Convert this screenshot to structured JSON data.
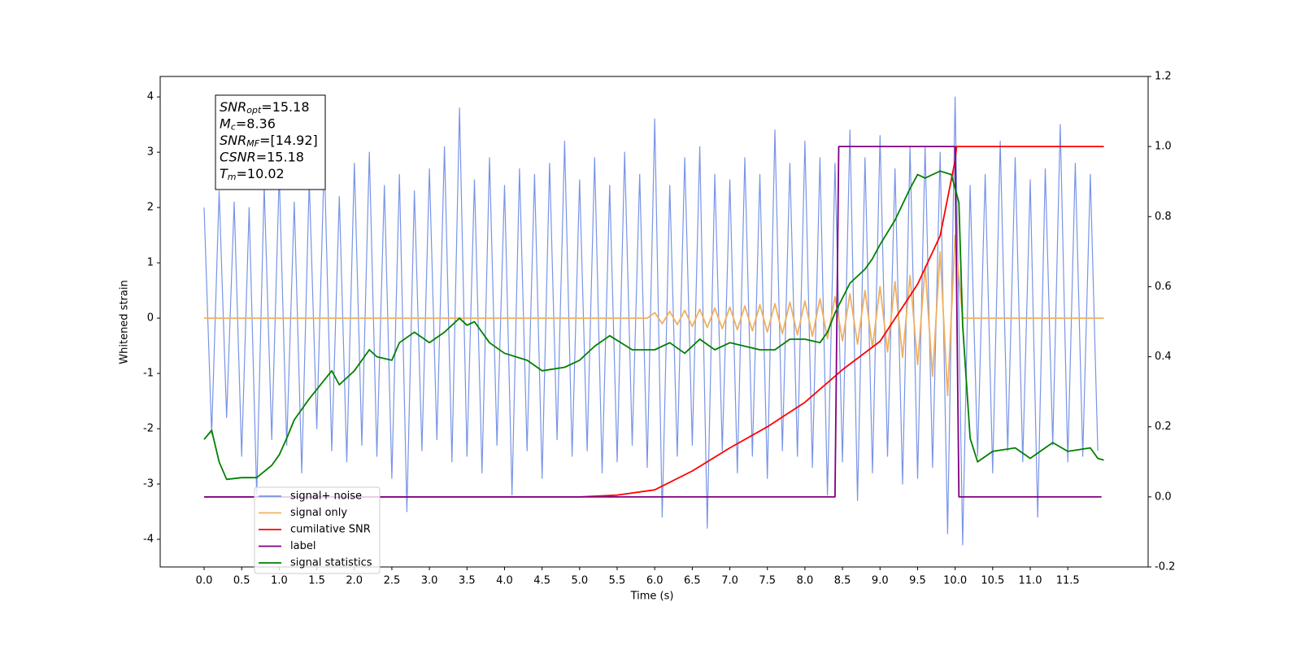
{
  "chart_data": {
    "type": "line",
    "x_label": "Time (s)",
    "y_label": "Whitened strain",
    "xlim": [
      -0.585,
      12.57
    ],
    "ylim": [
      -4.5,
      4.37
    ],
    "y2lim": [
      -0.2,
      1.2
    ],
    "xticks": [
      {
        "value": 0,
        "label": "0.0"
      },
      0.5,
      {
        "value": 1,
        "label": "1.0"
      },
      1.5,
      {
        "value": 2,
        "label": "2.0"
      },
      2.5,
      {
        "value": 3,
        "label": "3.0"
      },
      3.5,
      {
        "value": 4,
        "label": "4.0"
      },
      4.5,
      {
        "value": 5,
        "label": "5.0"
      },
      5.5,
      {
        "value": 6,
        "label": "6.0"
      },
      6.5,
      {
        "value": 7,
        "label": "7.0"
      },
      7.5,
      {
        "value": 8,
        "label": "8.0"
      },
      8.5,
      {
        "value": 9,
        "label": "9.0"
      },
      9.5,
      {
        "value": 10,
        "label": "10.0"
      },
      10.5,
      {
        "value": 11,
        "label": "11.0"
      },
      11.5
    ],
    "yticks": [
      -4,
      -3,
      -2,
      -1,
      0,
      1,
      2,
      3,
      4
    ],
    "y2ticks": [
      -0.2,
      {
        "value": 0,
        "label": "0.0"
      },
      0.2,
      0.4,
      0.6,
      0.8,
      {
        "value": 1,
        "label": "1.0"
      },
      1.2
    ],
    "annotations": [
      {
        "name": "SNR",
        "sub": "opt",
        "text": "=15.18"
      },
      {
        "name": "M",
        "sub": "c",
        "text": "=8.36"
      },
      {
        "name": "SNR",
        "sub": "MF",
        "text": "=[14.92]"
      },
      {
        "name": "CSNR",
        "sub": "",
        "text": "=15.18"
      },
      {
        "name": "T",
        "sub": "m",
        "text": "=10.02"
      }
    ],
    "series": [
      {
        "name": "signal+ noise",
        "color": "#7894e6",
        "x": [
          0.0,
          0.1,
          0.2,
          0.3,
          0.4,
          0.5,
          0.6,
          0.7,
          0.8,
          0.9,
          1.0,
          1.1,
          1.2,
          1.3,
          1.4,
          1.5,
          1.6,
          1.7,
          1.8,
          1.9,
          2.0,
          2.1,
          2.2,
          2.3,
          2.4,
          2.5,
          2.6,
          2.7,
          2.8,
          2.9,
          3.0,
          3.1,
          3.2,
          3.3,
          3.4,
          3.5,
          3.6,
          3.7,
          3.8,
          3.9,
          4.0,
          4.1,
          4.2,
          4.3,
          4.4,
          4.5,
          4.6,
          4.7,
          4.8,
          4.9,
          5.0,
          5.1,
          5.2,
          5.3,
          5.4,
          5.5,
          5.6,
          5.7,
          5.8,
          5.9,
          6.0,
          6.1,
          6.2,
          6.3,
          6.4,
          6.5,
          6.6,
          6.7,
          6.8,
          6.9,
          7.0,
          7.1,
          7.2,
          7.3,
          7.4,
          7.5,
          7.6,
          7.7,
          7.8,
          7.9,
          8.0,
          8.1,
          8.2,
          8.3,
          8.4,
          8.5,
          8.6,
          8.7,
          8.8,
          8.9,
          9.0,
          9.1,
          9.2,
          9.3,
          9.4,
          9.5,
          9.6,
          9.7,
          9.8,
          9.9,
          10.0,
          10.1,
          10.2,
          10.3,
          10.4,
          10.5,
          10.6,
          10.7,
          10.8,
          10.9,
          11.0,
          11.1,
          11.2,
          11.3,
          11.4,
          11.5,
          11.6,
          11.7,
          11.8,
          11.9
        ],
        "values": [
          2.0,
          -2.1,
          2.3,
          -1.8,
          2.1,
          -2.5,
          2.0,
          -3.2,
          2.4,
          -2.2,
          2.6,
          -2.3,
          2.1,
          -2.8,
          2.5,
          -2.0,
          2.9,
          -2.4,
          2.2,
          -2.6,
          2.8,
          -2.3,
          3.0,
          -2.5,
          2.4,
          -2.9,
          2.6,
          -3.5,
          2.3,
          -2.4,
          2.7,
          -2.2,
          3.1,
          -2.6,
          3.8,
          -2.5,
          2.5,
          -2.8,
          2.9,
          -2.3,
          2.4,
          -3.2,
          2.7,
          -2.4,
          2.6,
          -2.9,
          2.8,
          -2.2,
          3.2,
          -2.5,
          2.5,
          -2.4,
          2.9,
          -2.8,
          2.4,
          -2.6,
          3.0,
          -2.3,
          2.6,
          -2.7,
          3.6,
          -3.6,
          2.4,
          -2.5,
          2.9,
          -2.3,
          3.1,
          -3.8,
          2.6,
          -2.4,
          2.5,
          -2.8,
          2.9,
          -2.5,
          2.6,
          -2.9,
          3.4,
          -2.4,
          2.8,
          -2.5,
          3.2,
          -2.7,
          2.9,
          -3.2,
          2.8,
          -2.6,
          3.4,
          -3.3,
          2.9,
          -2.8,
          3.3,
          -2.5,
          2.7,
          -3.0,
          3.1,
          -2.9,
          3.1,
          -2.7,
          3.0,
          -3.9,
          4.0,
          -4.1,
          2.4,
          -2.5,
          2.6,
          -2.8,
          3.2,
          -2.4,
          2.9,
          -2.6,
          2.5,
          -3.6,
          2.7,
          -2.3,
          3.5,
          -2.6,
          2.8,
          -2.5,
          2.6,
          -2.4
        ]
      },
      {
        "name": "signal only",
        "color": "#f0b060",
        "x": [
          0.0,
          5.9,
          6.0,
          6.1,
          6.2,
          6.3,
          6.4,
          6.5,
          6.6,
          6.7,
          6.8,
          6.9,
          7.0,
          7.1,
          7.2,
          7.3,
          7.4,
          7.5,
          7.6,
          7.7,
          7.8,
          7.9,
          8.0,
          8.1,
          8.2,
          8.3,
          8.4,
          8.5,
          8.6,
          8.7,
          8.8,
          8.9,
          9.0,
          9.1,
          9.2,
          9.3,
          9.4,
          9.5,
          9.6,
          9.7,
          9.8,
          9.9,
          10.0,
          10.1,
          11.98
        ],
        "values": [
          0,
          0,
          0.1,
          -0.1,
          0.12,
          -0.12,
          0.14,
          -0.15,
          0.16,
          -0.17,
          0.18,
          -0.19,
          0.2,
          -0.21,
          0.22,
          -0.23,
          0.24,
          -0.25,
          0.26,
          -0.28,
          0.29,
          -0.3,
          0.31,
          -0.33,
          0.35,
          -0.37,
          0.39,
          -0.41,
          0.44,
          -0.47,
          0.5,
          -0.53,
          0.57,
          -0.61,
          0.66,
          -0.71,
          0.77,
          -0.84,
          0.93,
          -1.05,
          1.2,
          -1.4,
          1.5,
          0,
          0
        ]
      },
      {
        "name": "cumilative SNR",
        "color": "#ff0000",
        "axis": "y2",
        "x": [
          0.0,
          5.0,
          5.5,
          6.0,
          6.5,
          7.0,
          7.5,
          8.0,
          8.5,
          9.0,
          9.5,
          9.8,
          10.0,
          10.02,
          11.98
        ],
        "values": [
          0,
          0,
          0.005,
          0.02,
          0.074,
          0.14,
          0.2,
          0.27,
          0.363,
          0.444,
          0.607,
          0.745,
          0.96,
          1.0,
          1.0
        ]
      },
      {
        "name": "label",
        "color": "#800080",
        "axis": "y2",
        "x": [
          0.0,
          8.4,
          8.45,
          10.0,
          10.05,
          11.95
        ],
        "values": [
          0,
          0,
          1,
          1,
          0,
          0
        ]
      },
      {
        "name": "signal statistics",
        "color": "#008000",
        "axis": "y2",
        "x": [
          0.0,
          0.1,
          0.2,
          0.3,
          0.5,
          0.7,
          0.9,
          1.0,
          1.1,
          1.2,
          1.4,
          1.7,
          1.8,
          2.0,
          2.2,
          2.3,
          2.5,
          2.6,
          2.8,
          3.0,
          3.2,
          3.4,
          3.5,
          3.6,
          3.8,
          4.0,
          4.3,
          4.5,
          4.8,
          5.0,
          5.2,
          5.4,
          5.7,
          6.0,
          6.2,
          6.4,
          6.6,
          6.8,
          7.0,
          7.2,
          7.4,
          7.6,
          7.8,
          8.0,
          8.2,
          8.3,
          8.4,
          8.6,
          8.8,
          8.9,
          9.0,
          9.2,
          9.4,
          9.5,
          9.6,
          9.8,
          9.95,
          10.05,
          10.1,
          10.2,
          10.3,
          10.5,
          10.8,
          11.0,
          11.3,
          11.5,
          11.8,
          11.9,
          11.98
        ],
        "values": [
          0.164,
          0.19,
          0.1,
          0.05,
          0.055,
          0.055,
          0.09,
          0.12,
          0.167,
          0.22,
          0.28,
          0.36,
          0.32,
          0.36,
          0.42,
          0.4,
          0.39,
          0.44,
          0.47,
          0.44,
          0.47,
          0.51,
          0.49,
          0.5,
          0.44,
          0.41,
          0.39,
          0.36,
          0.37,
          0.39,
          0.43,
          0.46,
          0.42,
          0.42,
          0.44,
          0.41,
          0.45,
          0.42,
          0.44,
          0.43,
          0.42,
          0.42,
          0.45,
          0.45,
          0.44,
          0.47,
          0.525,
          0.61,
          0.65,
          0.68,
          0.72,
          0.79,
          0.88,
          0.92,
          0.91,
          0.93,
          0.92,
          0.84,
          0.49,
          0.167,
          0.1,
          0.13,
          0.14,
          0.11,
          0.155,
          0.13,
          0.14,
          0.11,
          0.105
        ]
      }
    ]
  }
}
